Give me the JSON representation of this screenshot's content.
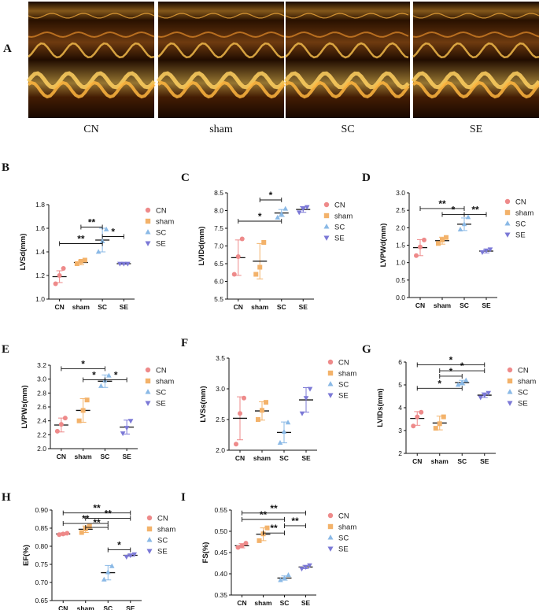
{
  "panel_a": {
    "label": "A",
    "images": [
      {
        "caption": "CN",
        "name": "cn"
      },
      {
        "caption": "sham",
        "name": "sham"
      },
      {
        "caption": "SC",
        "name": "sc"
      },
      {
        "caption": "SE",
        "name": "se"
      }
    ]
  },
  "legend": {
    "entries": [
      "CN",
      "sham",
      "SC",
      "SE"
    ]
  },
  "colors": {
    "CN": "#ee8a8a",
    "sham": "#f3b26a",
    "SC": "#8ab9e6",
    "SE": "#7b78d6"
  },
  "chart_data": [
    {
      "label": "B",
      "type": "scatter",
      "ylabel": "LVSd(mm)",
      "categories": [
        "CN",
        "sham",
        "SC",
        "SE"
      ],
      "ylim": [
        1.0,
        1.8
      ],
      "yticks": [
        "1.0",
        "1.2",
        "1.4",
        "1.6",
        "1.8"
      ],
      "series": [
        {
          "name": "CN",
          "points": [
            1.13,
            1.2,
            1.26
          ],
          "mean": 1.19,
          "sd": 0.05
        },
        {
          "name": "sham",
          "points": [
            1.3,
            1.32,
            1.33
          ],
          "mean": 1.31,
          "sd": 0.02
        },
        {
          "name": "SC",
          "points": [
            1.4,
            1.49,
            1.59
          ],
          "mean": 1.5,
          "sd": 0.1
        },
        {
          "name": "SE",
          "points": [
            1.3,
            1.3,
            1.3
          ],
          "mean": 1.3,
          "sd": 0.005
        }
      ],
      "sig": [
        {
          "from": 0,
          "to": 2,
          "y": 1.47,
          "text": "**"
        },
        {
          "from": 1,
          "to": 2,
          "y": 1.61,
          "text": "**"
        },
        {
          "from": 2,
          "to": 3,
          "y": 1.53,
          "text": "*"
        }
      ]
    },
    {
      "label": "C",
      "type": "scatter",
      "ylabel": "LVIDd(mm)",
      "categories": [
        "CN",
        "sham",
        "SC",
        "SE"
      ],
      "ylim": [
        5.5,
        8.5
      ],
      "yticks": [
        "5.5",
        "6.0",
        "6.5",
        "7.0",
        "7.5",
        "8.0",
        "8.5"
      ],
      "series": [
        {
          "name": "CN",
          "points": [
            6.2,
            6.7,
            7.2
          ],
          "mean": 6.67,
          "sd": 0.5
        },
        {
          "name": "sham",
          "points": [
            6.2,
            6.4,
            7.1
          ],
          "mean": 6.57,
          "sd": 0.5
        },
        {
          "name": "SC",
          "points": [
            7.8,
            7.9,
            8.05
          ],
          "mean": 7.93,
          "sd": 0.1
        },
        {
          "name": "SE",
          "points": [
            7.95,
            8.05,
            8.1
          ],
          "mean": 8.03,
          "sd": 0.08
        }
      ],
      "sig": [
        {
          "from": 0,
          "to": 2,
          "y": 7.7,
          "text": "*"
        },
        {
          "from": 1,
          "to": 2,
          "y": 8.3,
          "text": "*"
        }
      ]
    },
    {
      "label": "D",
      "type": "scatter",
      "ylabel": "LVPWd(mm)",
      "categories": [
        "CN",
        "sham",
        "SC",
        "SE"
      ],
      "ylim": [
        0.0,
        3.0
      ],
      "yticks": [
        "0.0",
        "0.5",
        "1.0",
        "1.5",
        "2.0",
        "2.5",
        "3.0"
      ],
      "series": [
        {
          "name": "CN",
          "points": [
            1.2,
            1.45,
            1.65
          ],
          "mean": 1.43,
          "sd": 0.23
        },
        {
          "name": "sham",
          "points": [
            1.55,
            1.65,
            1.72
          ],
          "mean": 1.63,
          "sd": 0.1
        },
        {
          "name": "SC",
          "points": [
            1.95,
            2.1,
            2.3
          ],
          "mean": 2.1,
          "sd": 0.18
        },
        {
          "name": "SE",
          "points": [
            1.3,
            1.35,
            1.38
          ],
          "mean": 1.33,
          "sd": 0.05
        }
      ],
      "sig": [
        {
          "from": 0,
          "to": 2,
          "y": 2.55,
          "text": "**"
        },
        {
          "from": 1,
          "to": 2,
          "y": 2.38,
          "text": "*"
        },
        {
          "from": 2,
          "to": 3,
          "y": 2.38,
          "text": "**"
        }
      ]
    },
    {
      "label": "E",
      "type": "scatter",
      "ylabel": "LVPWs(mm)",
      "categories": [
        "CN",
        "sham",
        "SC",
        "SE"
      ],
      "ylim": [
        2.0,
        3.2
      ],
      "yticks": [
        "2.0",
        "2.2",
        "2.4",
        "2.6",
        "2.8",
        "3.0",
        "3.2"
      ],
      "series": [
        {
          "name": "CN",
          "points": [
            2.25,
            2.35,
            2.44
          ],
          "mean": 2.34,
          "sd": 0.1
        },
        {
          "name": "sham",
          "points": [
            2.4,
            2.55,
            2.7
          ],
          "mean": 2.55,
          "sd": 0.17
        },
        {
          "name": "SC",
          "points": [
            2.9,
            2.98,
            3.05
          ],
          "mean": 2.97,
          "sd": 0.09
        },
        {
          "name": "SE",
          "points": [
            2.22,
            2.3,
            2.4
          ],
          "mean": 2.31,
          "sd": 0.1
        }
      ],
      "sig": [
        {
          "from": 0,
          "to": 2,
          "y": 3.15,
          "text": "*"
        },
        {
          "from": 1,
          "to": 2,
          "y": 2.99,
          "text": "*"
        },
        {
          "from": 2,
          "to": 3,
          "y": 2.99,
          "text": "*"
        }
      ]
    },
    {
      "label": "F",
      "type": "scatter",
      "ylabel": "LVSs(mm)",
      "categories": [
        "CN",
        "sham",
        "SC",
        "SE"
      ],
      "ylim": [
        2.0,
        3.5
      ],
      "yticks": [
        "2.0",
        "2.5",
        "3.0",
        "3.5"
      ],
      "series": [
        {
          "name": "CN",
          "points": [
            2.1,
            2.6,
            2.85
          ],
          "mean": 2.52,
          "sd": 0.35
        },
        {
          "name": "sham",
          "points": [
            2.5,
            2.65,
            2.78
          ],
          "mean": 2.64,
          "sd": 0.15
        },
        {
          "name": "SC",
          "points": [
            2.12,
            2.3,
            2.45
          ],
          "mean": 2.29,
          "sd": 0.17
        },
        {
          "name": "SE",
          "points": [
            2.6,
            2.85,
            3.0
          ],
          "mean": 2.82,
          "sd": 0.2
        }
      ],
      "sig": []
    },
    {
      "label": "G",
      "type": "scatter",
      "ylabel": "LVIDs(mm)",
      "categories": [
        "CN",
        "sham",
        "SC",
        "SE"
      ],
      "ylim": [
        2,
        6
      ],
      "yticks": [
        "2",
        "3",
        "4",
        "5",
        "6"
      ],
      "series": [
        {
          "name": "CN",
          "points": [
            3.2,
            3.6,
            3.8
          ],
          "mean": 3.53,
          "sd": 0.3
        },
        {
          "name": "sham",
          "points": [
            3.1,
            3.3,
            3.6
          ],
          "mean": 3.33,
          "sd": 0.3
        },
        {
          "name": "SC",
          "points": [
            5.0,
            5.1,
            5.2
          ],
          "mean": 5.1,
          "sd": 0.1
        },
        {
          "name": "SE",
          "points": [
            4.45,
            4.55,
            4.65
          ],
          "mean": 4.55,
          "sd": 0.1
        }
      ],
      "sig": [
        {
          "from": 0,
          "to": 2,
          "y": 4.85,
          "text": "*"
        },
        {
          "from": 1,
          "to": 2,
          "y": 5.38,
          "text": "*"
        },
        {
          "from": 1,
          "to": 3,
          "y": 5.62,
          "text": "*"
        },
        {
          "from": 0,
          "to": 3,
          "y": 5.88,
          "text": "*"
        }
      ]
    },
    {
      "label": "H",
      "type": "scatter",
      "ylabel": "EF(%)",
      "categories": [
        "CN",
        "sham",
        "SC",
        "SE"
      ],
      "ylim": [
        0.65,
        0.9
      ],
      "yticks": [
        "0.65",
        "0.70",
        "0.75",
        "0.80",
        "0.85",
        "0.90"
      ],
      "series": [
        {
          "name": "CN",
          "points": [
            0.832,
            0.834,
            0.836
          ],
          "mean": 0.834,
          "sd": 0.003
        },
        {
          "name": "sham",
          "points": [
            0.838,
            0.848,
            0.855
          ],
          "mean": 0.847,
          "sd": 0.009
        },
        {
          "name": "SC",
          "points": [
            0.708,
            0.728,
            0.745
          ],
          "mean": 0.727,
          "sd": 0.02
        },
        {
          "name": "SE",
          "points": [
            0.771,
            0.775,
            0.778
          ],
          "mean": 0.775,
          "sd": 0.003
        }
      ],
      "sig": [
        {
          "from": 0,
          "to": 2,
          "y": 0.863,
          "text": "**"
        },
        {
          "from": 1,
          "to": 2,
          "y": 0.852,
          "text": "**"
        },
        {
          "from": 2,
          "to": 3,
          "y": 0.79,
          "text": "*"
        },
        {
          "from": 0,
          "to": 3,
          "y": 0.892,
          "text": "**"
        },
        {
          "from": 1,
          "to": 3,
          "y": 0.877,
          "text": "**"
        }
      ]
    },
    {
      "label": "I",
      "type": "scatter",
      "ylabel": "FS(%)",
      "categories": [
        "CN",
        "sham",
        "SC",
        "SE"
      ],
      "ylim": [
        0.35,
        0.55
      ],
      "yticks": [
        "0.35",
        "0.40",
        "0.45",
        "0.50",
        "0.55"
      ],
      "series": [
        {
          "name": "CN",
          "points": [
            0.462,
            0.466,
            0.472
          ],
          "mean": 0.466,
          "sd": 0.005
        },
        {
          "name": "sham",
          "points": [
            0.478,
            0.494,
            0.508
          ],
          "mean": 0.493,
          "sd": 0.015
        },
        {
          "name": "SC",
          "points": [
            0.385,
            0.39,
            0.397
          ],
          "mean": 0.39,
          "sd": 0.005
        },
        {
          "name": "SE",
          "points": [
            0.412,
            0.416,
            0.42
          ],
          "mean": 0.416,
          "sd": 0.004
        }
      ],
      "sig": [
        {
          "from": 0,
          "to": 2,
          "y": 0.528,
          "text": "**"
        },
        {
          "from": 0,
          "to": 3,
          "y": 0.543,
          "text": "**"
        },
        {
          "from": 1,
          "to": 2,
          "y": 0.496,
          "text": "**"
        },
        {
          "from": 2,
          "to": 3,
          "y": 0.513,
          "text": "**"
        }
      ]
    }
  ]
}
